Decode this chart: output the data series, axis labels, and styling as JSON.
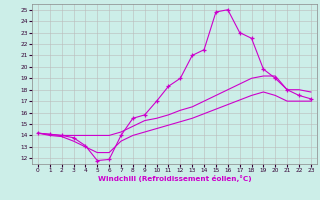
{
  "xlabel": "Windchill (Refroidissement éolien,°C)",
  "bg_color": "#cceee8",
  "line_color": "#cc00cc",
  "grid_color": "#bbbbbb",
  "xlim": [
    -0.5,
    23.5
  ],
  "ylim": [
    11.5,
    25.5
  ],
  "xticks": [
    0,
    1,
    2,
    3,
    4,
    5,
    6,
    7,
    8,
    9,
    10,
    11,
    12,
    13,
    14,
    15,
    16,
    17,
    18,
    19,
    20,
    21,
    22,
    23
  ],
  "yticks": [
    12,
    13,
    14,
    15,
    16,
    17,
    18,
    19,
    20,
    21,
    22,
    23,
    24,
    25
  ],
  "main_x": [
    0,
    1,
    2,
    3,
    4,
    5,
    6,
    7,
    8,
    9,
    10,
    11,
    12,
    13,
    14,
    15,
    16,
    17,
    18,
    19,
    20,
    21,
    22,
    23
  ],
  "main_y": [
    14.2,
    14.1,
    14.0,
    13.8,
    13.1,
    11.8,
    11.9,
    14.0,
    15.5,
    15.8,
    17.0,
    18.3,
    19.0,
    21.0,
    21.5,
    24.8,
    25.0,
    23.0,
    22.5,
    19.8,
    19.0,
    18.0,
    17.5,
    17.2
  ],
  "upper_x": [
    0,
    1,
    2,
    3,
    4,
    5,
    6,
    7,
    8,
    9,
    10,
    11,
    12,
    13,
    14,
    15,
    16,
    17,
    18,
    19,
    20,
    21,
    22,
    23
  ],
  "upper_y": [
    14.2,
    14.1,
    14.0,
    14.0,
    14.0,
    14.0,
    14.0,
    14.3,
    14.8,
    15.3,
    15.5,
    15.8,
    16.2,
    16.5,
    17.0,
    17.5,
    18.0,
    18.5,
    19.0,
    19.2,
    19.2,
    18.0,
    18.0,
    17.8
  ],
  "lower_x": [
    0,
    1,
    2,
    3,
    4,
    5,
    6,
    7,
    8,
    9,
    10,
    11,
    12,
    13,
    14,
    15,
    16,
    17,
    18,
    19,
    20,
    21,
    22,
    23
  ],
  "lower_y": [
    14.2,
    14.0,
    13.9,
    13.5,
    13.0,
    12.5,
    12.5,
    13.5,
    14.0,
    14.3,
    14.6,
    14.9,
    15.2,
    15.5,
    15.9,
    16.3,
    16.7,
    17.1,
    17.5,
    17.8,
    17.5,
    17.0,
    17.0,
    17.0
  ]
}
